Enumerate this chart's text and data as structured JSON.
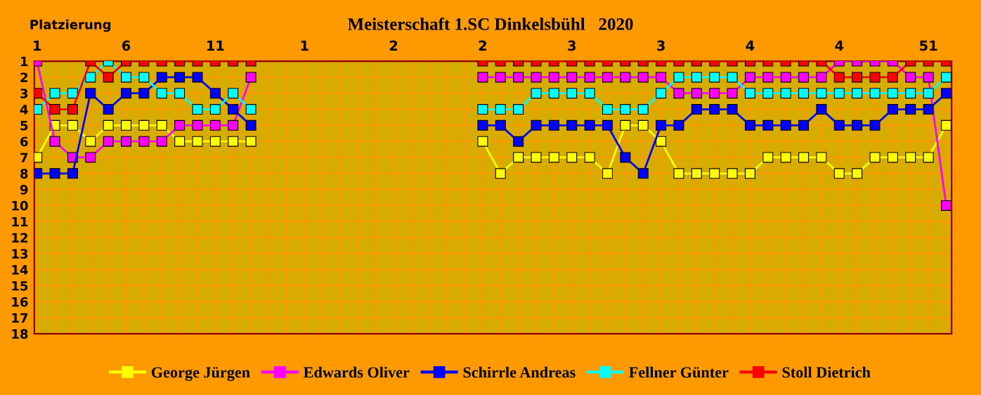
{
  "chart_data": {
    "type": "line",
    "title": "Meisterschaft 1.SC Dinkelsbühl   2020",
    "ylabel": "Platzierung",
    "categories": [
      "1",
      null,
      null,
      null,
      null,
      "6",
      null,
      null,
      null,
      null,
      "11",
      null,
      null,
      null,
      null,
      "1",
      null,
      null,
      null,
      null,
      "2",
      null,
      null,
      null,
      null,
      "2",
      null,
      null,
      null,
      null,
      "3",
      null,
      null,
      null,
      null,
      "3",
      null,
      null,
      null,
      null,
      "4",
      null,
      null,
      null,
      null,
      "4",
      null,
      null,
      null,
      null,
      "51",
      null
    ],
    "series": [
      {
        "name": "George Jürgen",
        "color": "#ffff00",
        "values": [
          7,
          5,
          5,
          6,
          5,
          5,
          5,
          5,
          6,
          6,
          6,
          6,
          6,
          null,
          null,
          null,
          null,
          null,
          null,
          null,
          null,
          null,
          null,
          null,
          null,
          6,
          8,
          7,
          7,
          7,
          7,
          7,
          8,
          5,
          5,
          6,
          8,
          8,
          8,
          8,
          8,
          7,
          7,
          7,
          7,
          8,
          8,
          7,
          7,
          7,
          7,
          5
        ]
      },
      {
        "name": "Edwards Oliver",
        "color": "#ff00ff",
        "values": [
          1,
          6,
          7,
          7,
          6,
          6,
          6,
          6,
          5,
          5,
          5,
          5,
          2,
          null,
          null,
          null,
          null,
          null,
          null,
          null,
          null,
          null,
          null,
          null,
          null,
          2,
          2,
          2,
          2,
          2,
          2,
          2,
          2,
          2,
          2,
          2,
          3,
          3,
          3,
          3,
          2,
          2,
          2,
          2,
          2,
          1,
          1,
          1,
          1,
          2,
          2,
          10
        ]
      },
      {
        "name": "Schirrle Andreas",
        "color": "#0000ff",
        "values": [
          8,
          8,
          8,
          3,
          4,
          3,
          3,
          2,
          2,
          2,
          3,
          4,
          5,
          null,
          null,
          null,
          null,
          null,
          null,
          null,
          null,
          null,
          null,
          null,
          null,
          5,
          5,
          6,
          5,
          5,
          5,
          5,
          5,
          7,
          8,
          5,
          5,
          4,
          4,
          4,
          5,
          5,
          5,
          5,
          4,
          5,
          5,
          5,
          4,
          4,
          4,
          3
        ]
      },
      {
        "name": "Fellner Günter",
        "color": "#00ffff",
        "values": [
          4,
          3,
          3,
          2,
          1,
          2,
          2,
          3,
          3,
          4,
          4,
          3,
          4,
          null,
          null,
          null,
          null,
          null,
          null,
          null,
          null,
          null,
          null,
          null,
          null,
          4,
          4,
          4,
          3,
          3,
          3,
          3,
          4,
          4,
          4,
          3,
          2,
          2,
          2,
          2,
          3,
          3,
          3,
          3,
          3,
          3,
          3,
          3,
          3,
          3,
          3,
          2
        ]
      },
      {
        "name": "Stoll Dietrich",
        "color": "#ff0000",
        "values": [
          3,
          4,
          4,
          1,
          2,
          1,
          1,
          1,
          1,
          1,
          1,
          1,
          1,
          null,
          null,
          null,
          null,
          null,
          null,
          null,
          null,
          null,
          null,
          null,
          null,
          1,
          1,
          1,
          1,
          1,
          1,
          1,
          1,
          1,
          1,
          1,
          1,
          1,
          1,
          1,
          1,
          1,
          1,
          1,
          1,
          2,
          2,
          2,
          2,
          1,
          1,
          1
        ]
      }
    ],
    "ylim": [
      18,
      1
    ],
    "yticks": [
      1,
      2,
      3,
      4,
      5,
      6,
      7,
      8,
      9,
      10,
      11,
      12,
      13,
      14,
      15,
      16,
      17,
      18
    ],
    "grid": true,
    "legend": "bottom",
    "marker": "square",
    "line_style": "solid"
  }
}
